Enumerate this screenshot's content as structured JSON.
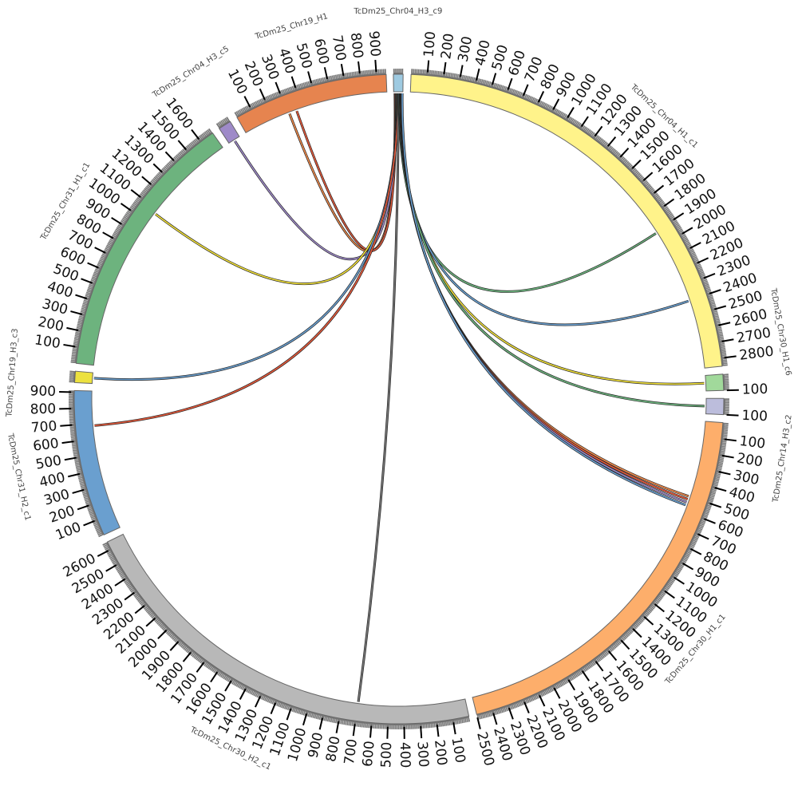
{
  "chart_data": {
    "type": "circos",
    "tick_step": 100,
    "minor_tick_step": 10,
    "segments": [
      {
        "name": "TcDm25_Chr04_H3_c9",
        "length": 60,
        "color": "#9ecae1"
      },
      {
        "name": "TcDm25_Chr04_H1_c1",
        "length": 2850,
        "color": "#fff38a"
      },
      {
        "name": "TcDm25_Chr30_H1_c6",
        "length": 100,
        "color": "#a1d99b"
      },
      {
        "name": "TcDm25_Chr14_H3_c2",
        "length": 100,
        "color": "#bcbddc"
      },
      {
        "name": "TcDm25_Chr30_H1_c1",
        "length": 2500,
        "color": "#fdae6b"
      },
      {
        "name": "TcDm25_Chr30_H2_c1",
        "length": 2650,
        "color": "#b8b8b8"
      },
      {
        "name": "TcDm25_Chr31_H2_c1",
        "length": 910,
        "color": "#6a9fcf"
      },
      {
        "name": "TcDm25_Chr19_H3_c3",
        "length": 70,
        "color": "#ece13f"
      },
      {
        "name": "TcDm25_Chr31_H1_c1",
        "length": 1690,
        "color": "#6db37e"
      },
      {
        "name": "TcDm25_Chr04_H3_c5",
        "length": 80,
        "color": "#9e8ac8"
      },
      {
        "name": "TcDm25_Chr19_H1",
        "length": 960,
        "color": "#e6844f"
      }
    ],
    "links": [
      {
        "source": 0,
        "source_pos": 8,
        "target": 10,
        "target_pos": 310,
        "color": "#f08a4b"
      },
      {
        "source": 0,
        "source_pos": 12,
        "target": 10,
        "target_pos": 360,
        "color": "#e55a3c"
      },
      {
        "source": 0,
        "source_pos": 16,
        "target": 9,
        "target_pos": 40,
        "color": "#9e8ac8"
      },
      {
        "source": 0,
        "source_pos": 20,
        "target": 8,
        "target_pos": 1073,
        "color": "#f3e23a"
      },
      {
        "source": 0,
        "source_pos": 24,
        "target": 7,
        "target_pos": 35,
        "color": "#6a9fcf"
      },
      {
        "source": 0,
        "source_pos": 28,
        "target": 6,
        "target_pos": 685,
        "color": "#e55a3c"
      },
      {
        "source": 0,
        "source_pos": 30,
        "target": 5,
        "target_pos": 697,
        "color": "#777777"
      },
      {
        "source": 0,
        "source_pos": 34,
        "target": 1,
        "target_pos": 1912,
        "color": "#6db37e"
      },
      {
        "source": 0,
        "source_pos": 38,
        "target": 1,
        "target_pos": 2402,
        "color": "#6a9fcf"
      },
      {
        "source": 0,
        "source_pos": 42,
        "target": 2,
        "target_pos": 50,
        "color": "#f3e23a"
      },
      {
        "source": 0,
        "source_pos": 45,
        "target": 3,
        "target_pos": 50,
        "color": "#6db37e"
      },
      {
        "source": 0,
        "source_pos": 48,
        "target": 4,
        "target_pos": 500,
        "color": "#f08a4b"
      },
      {
        "source": 0,
        "source_pos": 50,
        "target": 4,
        "target_pos": 520,
        "color": "#e55a3c"
      },
      {
        "source": 0,
        "source_pos": 53,
        "target": 4,
        "target_pos": 540,
        "color": "#9e8ac8"
      },
      {
        "source": 0,
        "source_pos": 56,
        "target": 4,
        "target_pos": 560,
        "color": "#6a9fcf"
      }
    ]
  }
}
